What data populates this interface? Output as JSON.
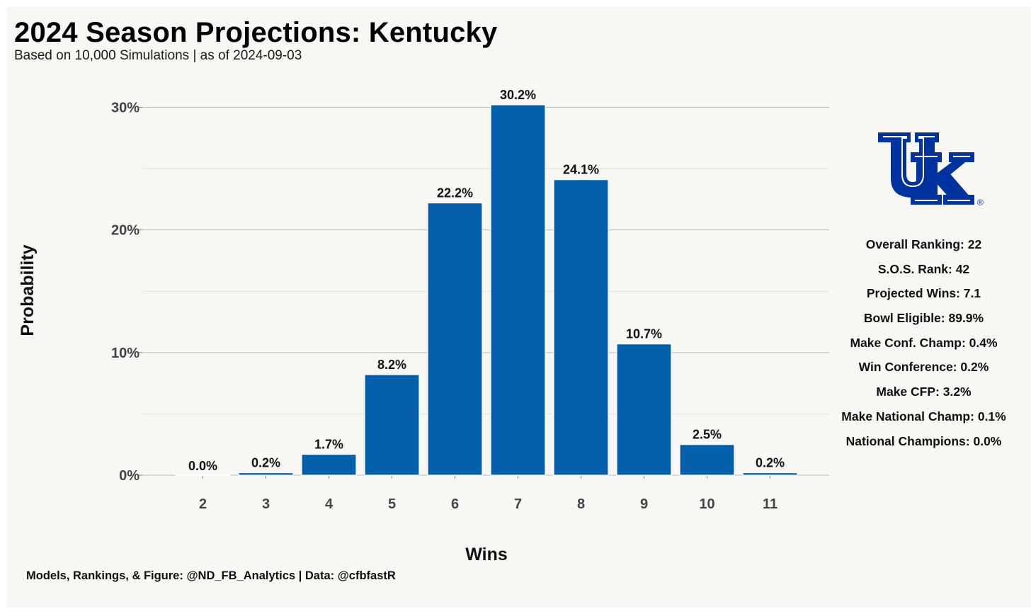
{
  "title": "2024 Season Projections: Kentucky",
  "subtitle": "Based on 10,000 Simulations | as of 2024-09-03",
  "caption": "Models, Rankings, & Figure: @ND_FB_Analytics | Data: @cfbfastR",
  "colors": {
    "background": "#f8f7f4",
    "bar": "#0460ab",
    "grid_major": "#bdbdbd",
    "grid_minor": "#e2e2e2",
    "logo_blue": "#0033a0"
  },
  "logo": {
    "icon": "kentucky-uk-logo-icon",
    "text": "UK",
    "registered_mark": "®"
  },
  "stats": [
    "Overall Ranking: 22",
    "S.O.S. Rank: 42",
    "Projected Wins: 7.1",
    "Bowl Eligible: 89.9%",
    "Make Conf. Champ: 0.4%",
    "Win Conference: 0.2%",
    "Make CFP: 3.2%",
    "Make National Champ: 0.1%",
    "National Champions: 0.0%"
  ],
  "chart_data": {
    "type": "bar",
    "title": "2024 Season Projections: Kentucky",
    "subtitle": "Based on 10,000 Simulations | as of 2024-09-03",
    "xlabel": "Wins",
    "ylabel": "Probability",
    "categories": [
      "2",
      "3",
      "4",
      "5",
      "6",
      "7",
      "8",
      "9",
      "10",
      "11"
    ],
    "values": [
      0.0,
      0.2,
      1.7,
      8.2,
      22.2,
      30.2,
      24.1,
      10.7,
      2.5,
      0.2
    ],
    "data_labels": [
      "0.0%",
      "0.2%",
      "1.7%",
      "8.2%",
      "22.2%",
      "30.2%",
      "24.1%",
      "10.7%",
      "2.5%",
      "0.2%"
    ],
    "yticks": [
      0,
      10,
      20,
      30
    ],
    "ytick_labels": [
      "0%",
      "10%",
      "20%",
      "30%"
    ],
    "ylim": [
      0,
      30.2
    ],
    "grid": true,
    "legend": "none"
  }
}
